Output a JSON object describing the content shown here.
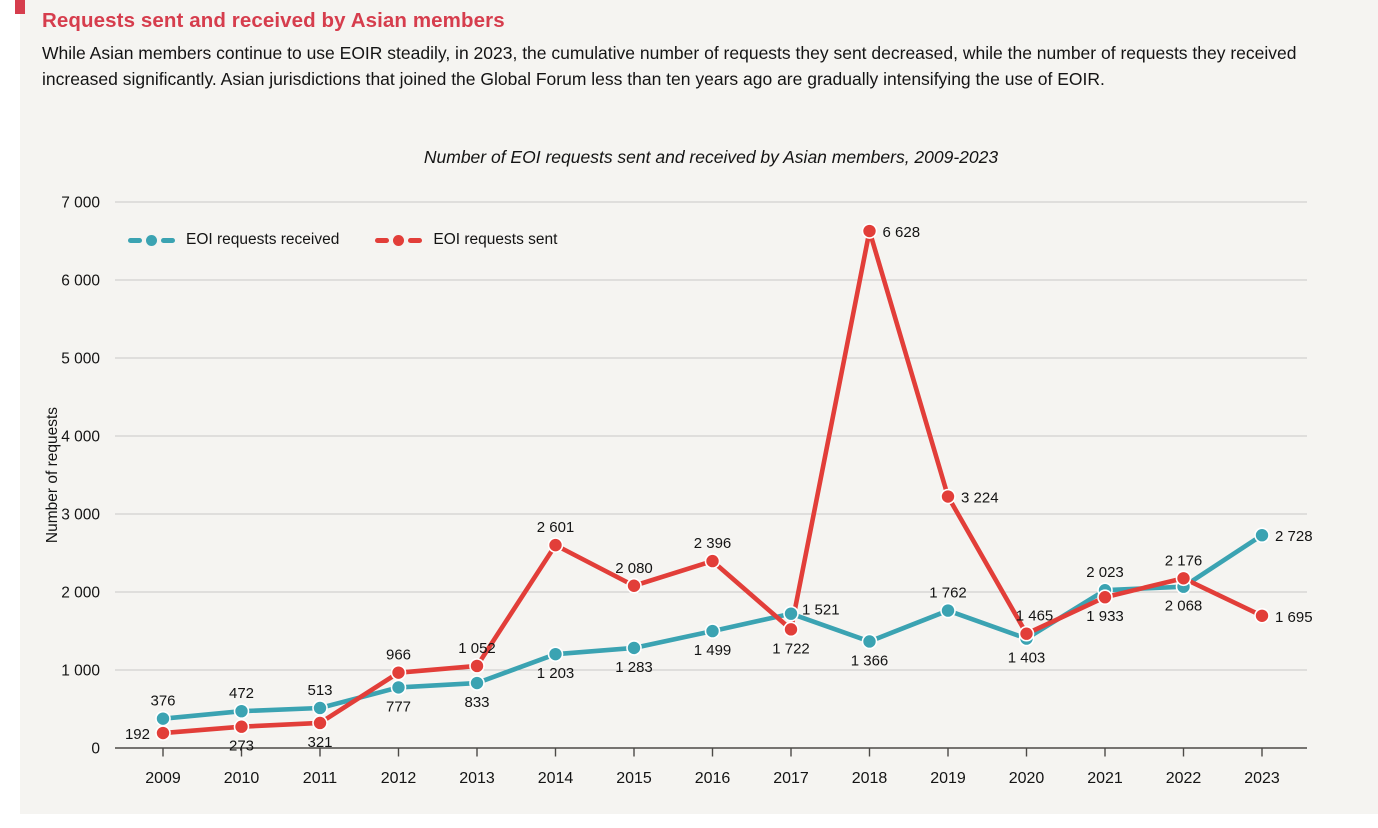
{
  "page": {
    "heading": "Requests sent and received by Asian members",
    "paragraph": "While Asian members continue to use EOIR steadily, in 2023, the cumulative number of requests they sent decreased, while the number of requests they received increased significantly. Asian jurisdictions that joined the Global Forum less than ten years ago are gradually intensifying the use of EOIR.",
    "accent_color": "#d63d4d"
  },
  "chart_data": {
    "type": "line",
    "title": "Number of EOI requests sent and received by Asian members, 2009-2023",
    "xlabel": "",
    "ylabel": "Number of requests",
    "categories": [
      "2009",
      "2010",
      "2011",
      "2012",
      "2013",
      "2014",
      "2015",
      "2016",
      "2017",
      "2018",
      "2019",
      "2020",
      "2021",
      "2022",
      "2023"
    ],
    "ylim": [
      0,
      7000
    ],
    "ytick_interval": 1000,
    "ytick_labels": [
      "0",
      "1 000",
      "2 000",
      "3 000",
      "4 000",
      "5 000",
      "6 000",
      "7 000"
    ],
    "grid": true,
    "legend_position": "top-left-inside",
    "series": [
      {
        "name": "EOI requests received",
        "color": "#3ba3b2",
        "values": [
          376,
          472,
          513,
          777,
          833,
          1203,
          1283,
          1499,
          1722,
          1366,
          1762,
          1403,
          2023,
          2068,
          2728
        ],
        "labels": [
          "376",
          "472",
          "513",
          "777",
          "833",
          "1 203",
          "1 283",
          "1 499",
          "1 722",
          "1 366",
          "1 762",
          "1 403",
          "2 023",
          "2 068",
          "2 728"
        ],
        "label_positions": [
          "above",
          "above",
          "above",
          "below",
          "below",
          "below",
          "below",
          "below",
          "below-far",
          "below",
          "above",
          "below",
          "above",
          "below",
          "right"
        ]
      },
      {
        "name": "EOI requests sent",
        "color": "#e23e39",
        "values": [
          192,
          273,
          321,
          966,
          1052,
          2601,
          2080,
          2396,
          1521,
          6628,
          3224,
          1465,
          1933,
          2176,
          1695
        ],
        "labels": [
          "192",
          "273",
          "321",
          "966",
          "1 052",
          "2 601",
          "2 080",
          "2 396",
          "1 521",
          "6 628",
          "3 224",
          "1 465",
          "1 933",
          "2 176",
          "1 695"
        ],
        "label_positions": [
          "left",
          "below",
          "below",
          "above",
          "above",
          "above",
          "above",
          "above",
          "right-up",
          "right",
          "right",
          "above-r",
          "below",
          "above",
          "right"
        ]
      }
    ]
  }
}
